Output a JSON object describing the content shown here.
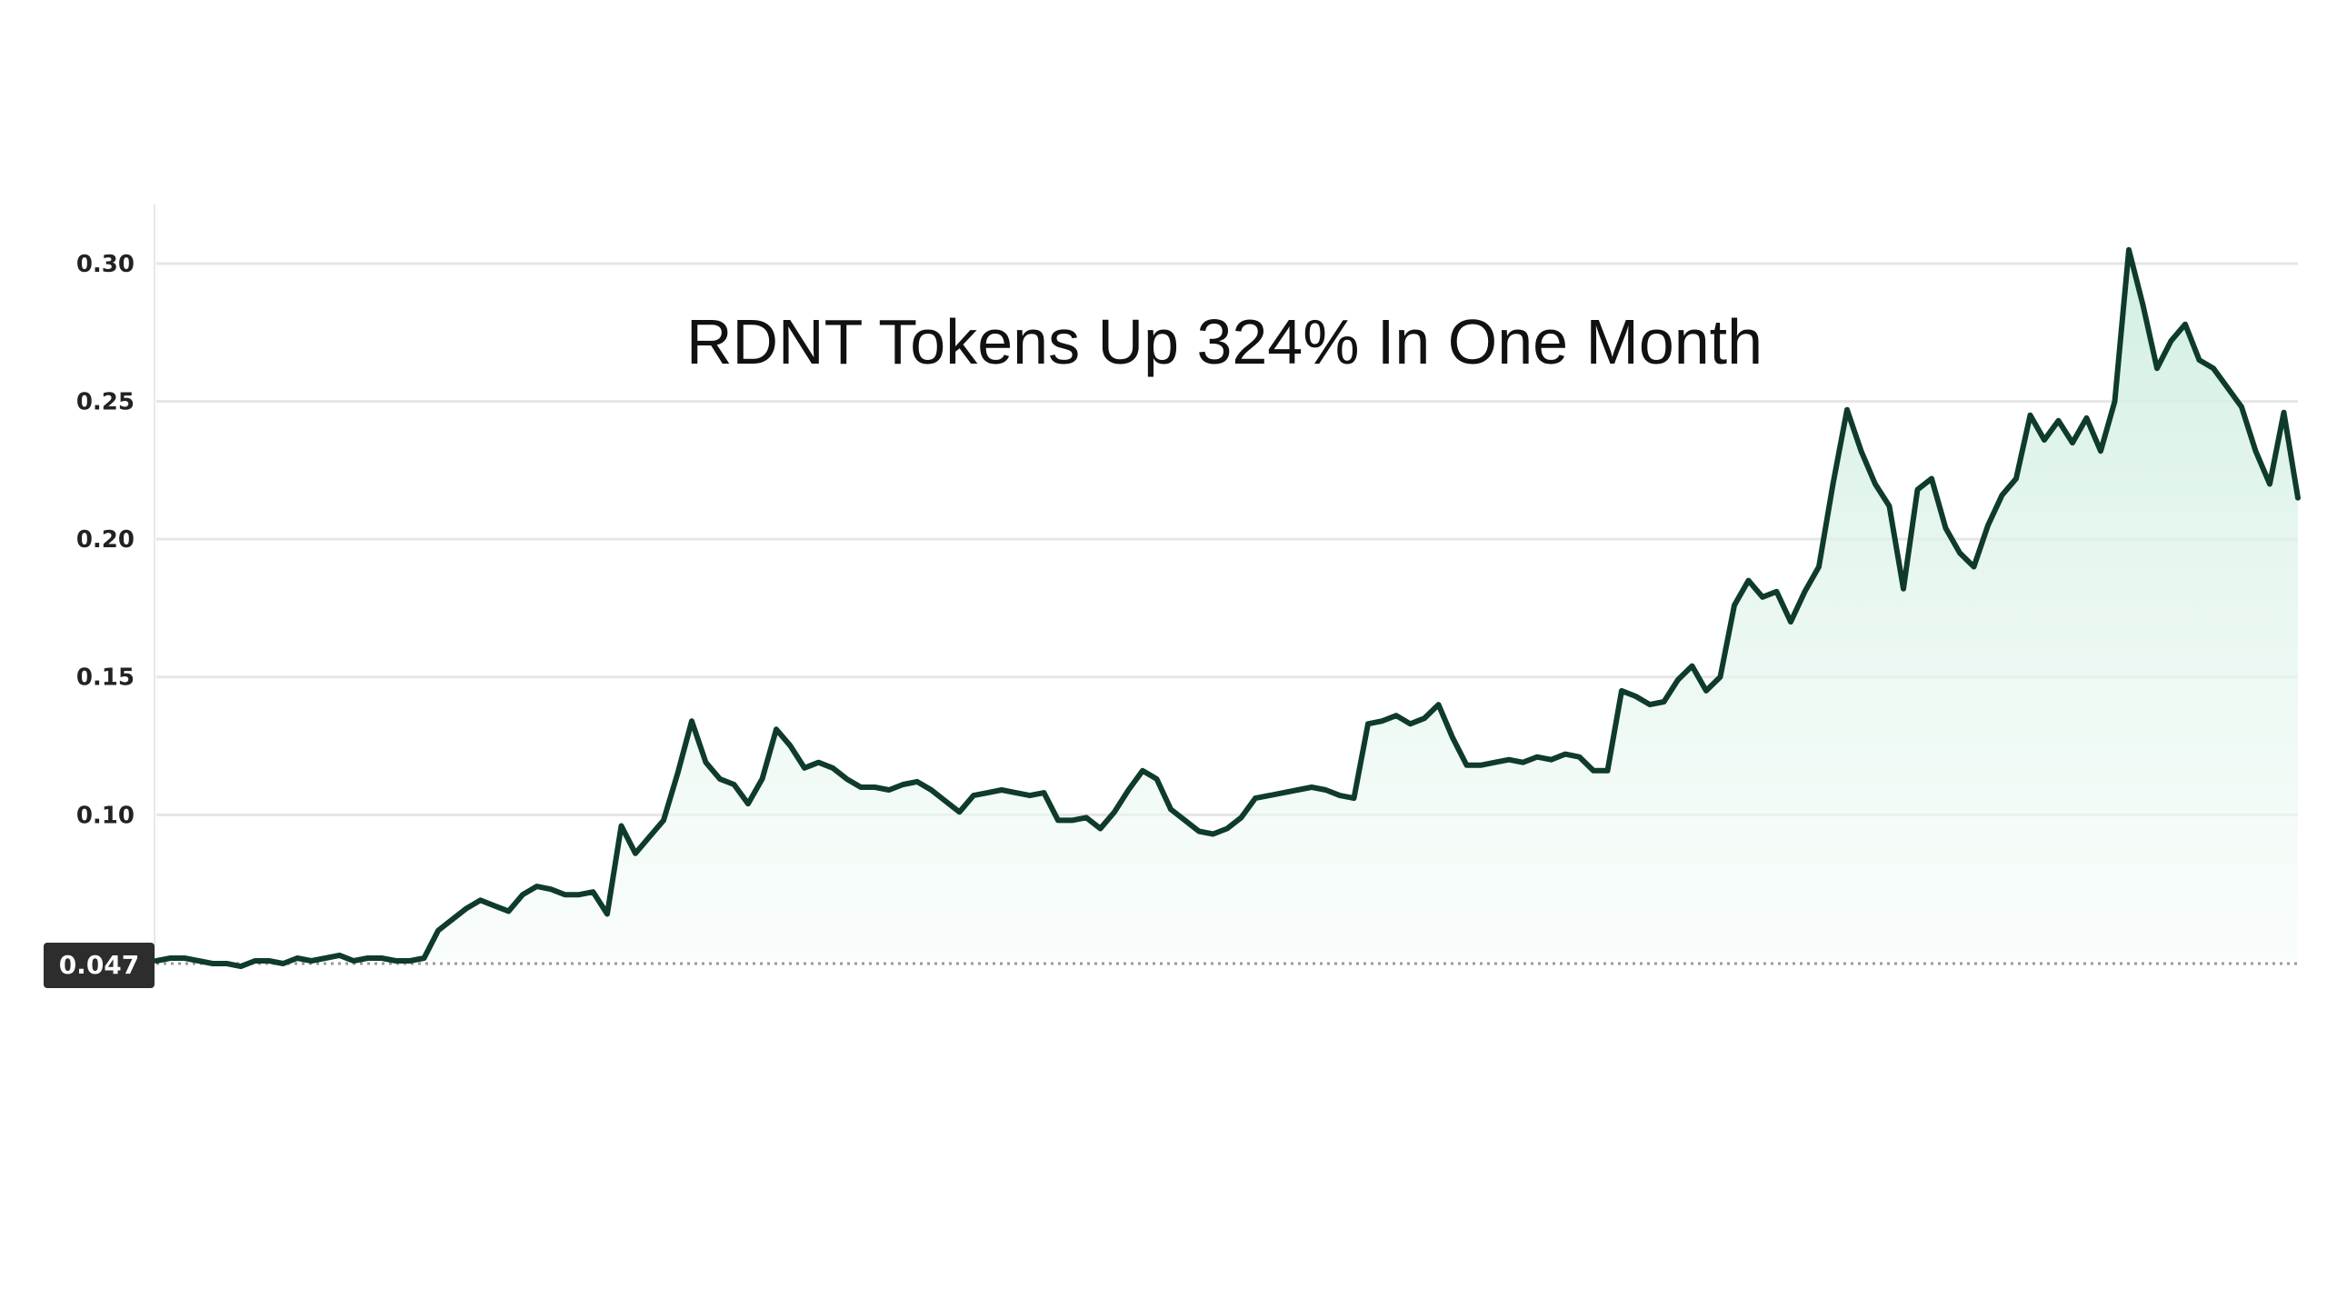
{
  "chart_data": {
    "type": "area",
    "title": "RDNT Tokens Up 324% In One Month",
    "xlabel": "",
    "ylabel": "",
    "ylim": [
      0.047,
      0.31
    ],
    "yticks": [
      {
        "label": "0.30",
        "value": 0.3
      },
      {
        "label": "0.25",
        "value": 0.25
      },
      {
        "label": "0.20",
        "value": 0.2
      },
      {
        "label": "0.15",
        "value": 0.15
      },
      {
        "label": "0.10",
        "value": 0.1
      }
    ],
    "grid": true,
    "legend": "none",
    "baseline": {
      "label": "0.047",
      "value": 0.047
    },
    "colors": {
      "line": "#0f3b2b",
      "fill": "#e6f5ee",
      "grid": "#e6e6e6",
      "badge": "#2d2d2d"
    },
    "series": [
      {
        "values": [
          0.047,
          0.048,
          0.048,
          0.047,
          0.046,
          0.046,
          0.045,
          0.047,
          0.047,
          0.046,
          0.048,
          0.047,
          0.048,
          0.049,
          0.047,
          0.048,
          0.048,
          0.047,
          0.047,
          0.048,
          0.058,
          0.062,
          0.066,
          0.069,
          0.067,
          0.065,
          0.071,
          0.074,
          0.073,
          0.071,
          0.071,
          0.072,
          0.064,
          0.096,
          0.086,
          0.092,
          0.098,
          0.115,
          0.134,
          0.119,
          0.113,
          0.111,
          0.104,
          0.113,
          0.131,
          0.125,
          0.117,
          0.119,
          0.117,
          0.113,
          0.11,
          0.11,
          0.109,
          0.111,
          0.112,
          0.109,
          0.105,
          0.101,
          0.107,
          0.108,
          0.109,
          0.108,
          0.107,
          0.108,
          0.098,
          0.098,
          0.099,
          0.095,
          0.101,
          0.109,
          0.116,
          0.113,
          0.102,
          0.098,
          0.094,
          0.093,
          0.095,
          0.099,
          0.106,
          0.107,
          0.108,
          0.109,
          0.11,
          0.109,
          0.107,
          0.106,
          0.133,
          0.134,
          0.136,
          0.133,
          0.135,
          0.14,
          0.128,
          0.118,
          0.118,
          0.119,
          0.12,
          0.119,
          0.121,
          0.12,
          0.122,
          0.121,
          0.116,
          0.116,
          0.145,
          0.143,
          0.14,
          0.141,
          0.149,
          0.154,
          0.145,
          0.15,
          0.176,
          0.185,
          0.179,
          0.181,
          0.17,
          0.181,
          0.19,
          0.22,
          0.247,
          0.232,
          0.22,
          0.212,
          0.182,
          0.218,
          0.222,
          0.204,
          0.195,
          0.19,
          0.205,
          0.216,
          0.222,
          0.245,
          0.236,
          0.243,
          0.235,
          0.244,
          0.232,
          0.25,
          0.305,
          0.285,
          0.262,
          0.272,
          0.278,
          0.265,
          0.262,
          0.255,
          0.248,
          0.232,
          0.22,
          0.246,
          0.215
        ]
      }
    ]
  }
}
